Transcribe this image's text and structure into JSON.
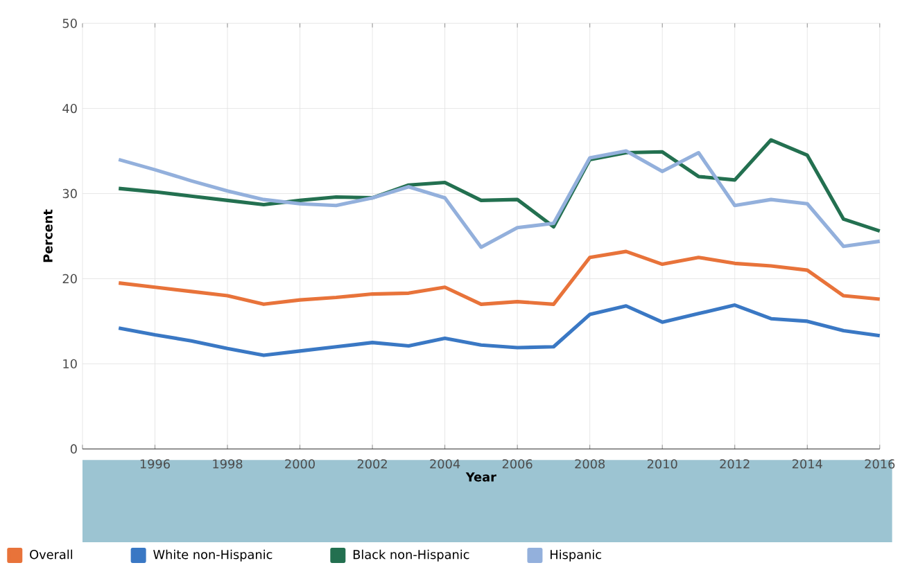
{
  "chart_data": {
    "type": "line",
    "xlabel": "Year",
    "ylabel": "Percent",
    "x": [
      1995,
      1996,
      1997,
      1998,
      1999,
      2000,
      2001,
      2002,
      2003,
      2004,
      2005,
      2006,
      2007,
      2008,
      2009,
      2010,
      2011,
      2012,
      2013,
      2014,
      2015,
      2016
    ],
    "series": [
      {
        "name": "Overall",
        "color": "#e8733a",
        "values": [
          19.5,
          19,
          18.5,
          18,
          17,
          17.5,
          17.8,
          18.2,
          18.3,
          19,
          17,
          17.3,
          17,
          22.5,
          23.2,
          21.7,
          22.5,
          21.8,
          21.5,
          21,
          18,
          17.6
        ]
      },
      {
        "name": "White non-Hispanic",
        "color": "#3a78c4",
        "values": [
          14.2,
          13.4,
          12.7,
          11.8,
          11,
          11.5,
          12,
          12.5,
          12.1,
          13,
          12.2,
          11.9,
          12,
          15.8,
          16.8,
          14.9,
          15.9,
          16.9,
          15.3,
          15,
          13.9,
          13.3
        ]
      },
      {
        "name": "Black non-Hispanic",
        "color": "#237050",
        "values": [
          30.6,
          30.2,
          29.7,
          29.2,
          28.7,
          29.2,
          29.6,
          29.5,
          31,
          31.3,
          29.2,
          29.3,
          26.1,
          34,
          34.8,
          34.9,
          32,
          31.6,
          36.3,
          34.5,
          27,
          25.6
        ]
      },
      {
        "name": "Hispanic",
        "color": "#93b0dc",
        "values": [
          34,
          32.8,
          31.5,
          30.3,
          29.3,
          28.8,
          28.6,
          29.5,
          30.8,
          29.5,
          23.7,
          26,
          26.5,
          34.2,
          35,
          32.6,
          34.8,
          28.6,
          29.3,
          28.8,
          23.8,
          24.4
        ]
      }
    ],
    "xlim": [
      1994,
      2016
    ],
    "ylim": [
      0,
      50
    ],
    "xticks": [
      {
        "value": 1994,
        "label": null
      },
      1996,
      1998,
      2000,
      2002,
      2004,
      2006,
      2008,
      2010,
      2012,
      2014,
      2016
    ],
    "yticks": [
      0,
      10,
      20,
      30,
      40,
      50
    ],
    "grid": true,
    "legend": "bottom",
    "marker": "none",
    "line_style": "solid"
  }
}
